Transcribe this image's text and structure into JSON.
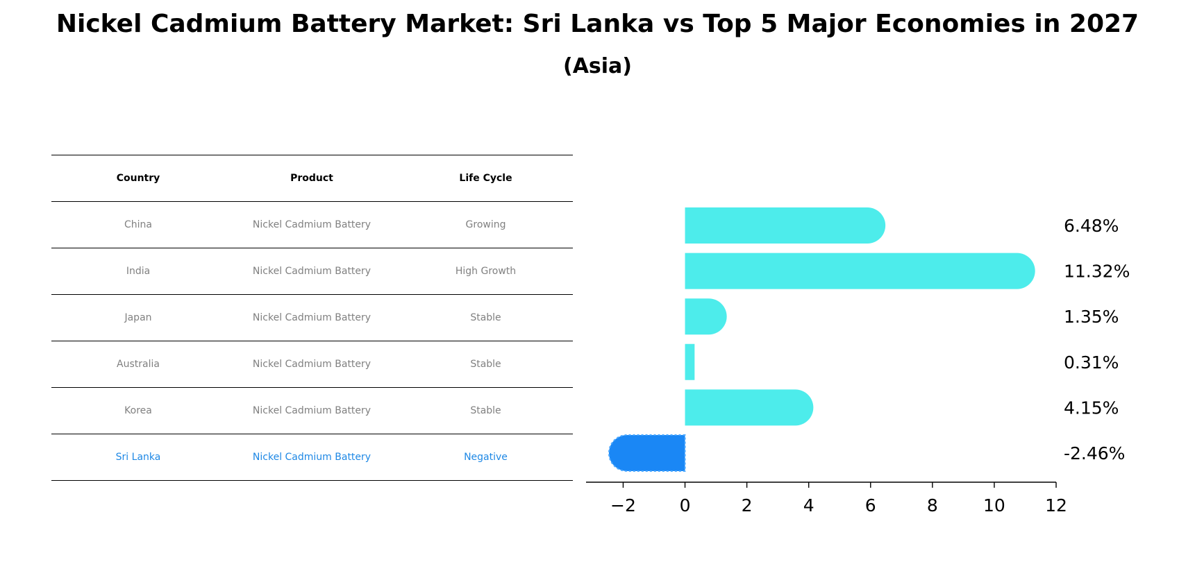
{
  "title": "Nickel Cadmium Battery Market: Sri Lanka vs Top 5 Major Economies in 2027",
  "subtitle": "(Asia)",
  "colors": {
    "bar": "#4deceb",
    "highlight_bar": "#1a87f5",
    "highlight_text": "#1e88e5",
    "table_text": "#808080"
  },
  "table": {
    "headers": [
      "Country",
      "Product",
      "Life Cycle"
    ],
    "rows": [
      [
        "China",
        "Nickel Cadmium Battery",
        "Growing"
      ],
      [
        "India",
        "Nickel Cadmium Battery",
        "High Growth"
      ],
      [
        "Japan",
        "Nickel Cadmium Battery",
        "Stable"
      ],
      [
        "Australia",
        "Nickel Cadmium Battery",
        "Stable"
      ],
      [
        "Korea",
        "Nickel Cadmium Battery",
        "Stable"
      ],
      [
        "Sri Lanka",
        "Nickel Cadmium Battery",
        "Negative"
      ]
    ],
    "highlight_row": 5
  },
  "chart_data": {
    "type": "bar",
    "orientation": "horizontal",
    "categories": [
      "China",
      "India",
      "Japan",
      "Australia",
      "Korea",
      "Sri Lanka"
    ],
    "values": [
      6.48,
      11.32,
      1.35,
      0.31,
      4.15,
      -2.46
    ],
    "value_labels": [
      "6.48%",
      "11.32%",
      "1.35%",
      "0.31%",
      "4.15%",
      "-2.46%"
    ],
    "xlim": [
      -3.2,
      12
    ],
    "xticks": [
      -2,
      0,
      2,
      4,
      6,
      8,
      10,
      12
    ],
    "xtick_labels": [
      "−2",
      "0",
      "2",
      "4",
      "6",
      "8",
      "10",
      "12"
    ],
    "highlight_index": 5,
    "grid": false
  }
}
